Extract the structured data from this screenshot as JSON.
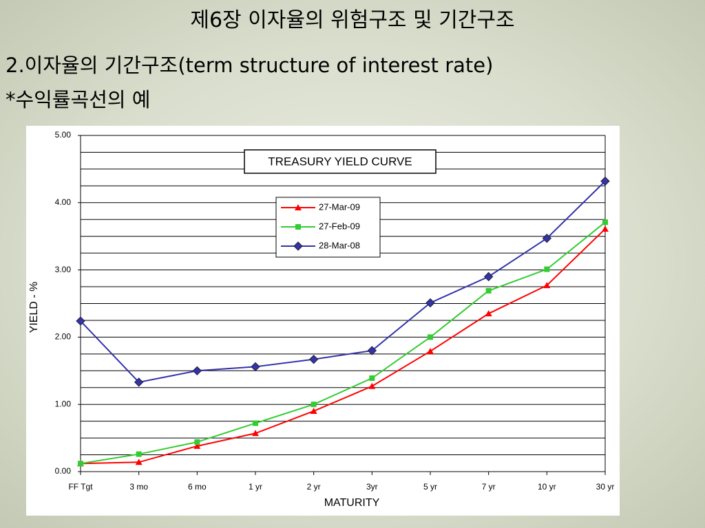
{
  "slide": {
    "title": "제6장 이자율의 위험구조 및 기간구조",
    "heading": "2.이자율의 기간구조(term structure of interest rate)",
    "subheading": "*수익률곡선의 예"
  },
  "chart_data": {
    "type": "line",
    "title": "TREASURY YIELD CURVE",
    "x_label": "MATURITY",
    "y_label": "YIELD - %",
    "categories": [
      "FF Tgt",
      "3 mo",
      "6 mo",
      "1 yr",
      "2 yr",
      "3yr",
      "5 yr",
      "7 yr",
      "10 yr",
      "30 yr"
    ],
    "series": [
      {
        "name": "27-Mar-09",
        "color": "#ff0000",
        "marker": "triangle",
        "values": [
          0.12,
          0.14,
          0.38,
          0.57,
          0.9,
          1.27,
          1.79,
          2.35,
          2.77,
          3.61
        ]
      },
      {
        "name": "27-Feb-09",
        "color": "#33cc33",
        "marker": "square",
        "values": [
          0.12,
          0.26,
          0.44,
          0.72,
          1.0,
          1.39,
          2.0,
          2.69,
          3.01,
          3.71
        ]
      },
      {
        "name": "28-Mar-08",
        "color": "#3333aa",
        "marker": "diamond",
        "values": [
          2.24,
          1.33,
          1.5,
          1.56,
          1.67,
          1.8,
          2.51,
          2.9,
          3.47,
          4.32
        ]
      }
    ],
    "ylim": [
      0,
      5
    ],
    "yticks": [
      {
        "value": 0,
        "label": "0.00"
      },
      {
        "value": 1,
        "label": "1.00"
      },
      {
        "value": 2,
        "label": "2.00"
      },
      {
        "value": 3,
        "label": "3.00"
      },
      {
        "value": 4,
        "label": "4.00"
      },
      {
        "value": 5,
        "label": "5.00"
      }
    ],
    "y_minor_ticks": [
      0.25,
      0.5,
      0.75,
      1.25,
      1.5,
      1.75,
      2.25,
      2.5,
      2.75,
      3.25,
      3.5,
      3.75,
      4.25,
      4.5,
      4.75
    ],
    "grid": true,
    "legend": "top-center"
  }
}
